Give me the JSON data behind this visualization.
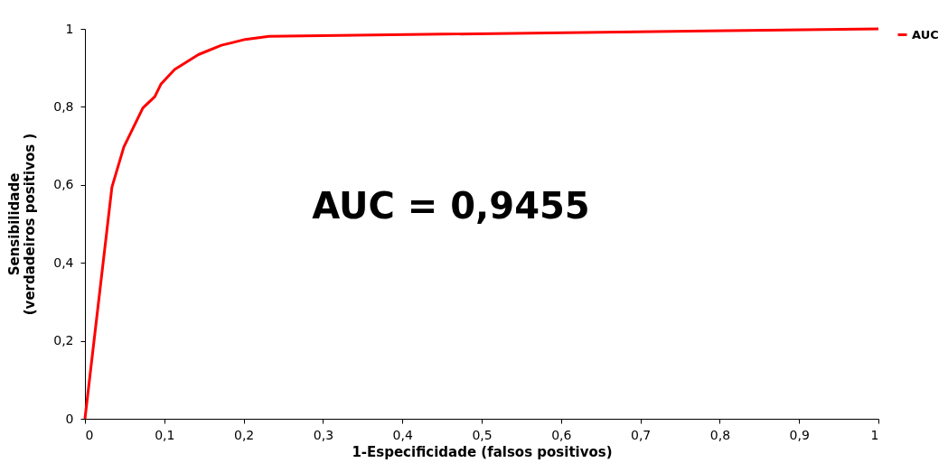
{
  "chart_data": {
    "type": "line",
    "xlabel": "1-Especificidade (falsos positivos)",
    "ylabel": [
      "Sensibilidade",
      "(verdadeiros positivos )"
    ],
    "annotations": [
      "AUC = 0,9455"
    ],
    "series": [
      {
        "name": "AUC",
        "color": "#ff0000",
        "x": [
          0,
          0.034,
          0.049,
          0.073,
          0.088,
          0.096,
          0.113,
          0.143,
          0.172,
          0.202,
          0.232,
          1
        ],
        "values": [
          0,
          0.594,
          0.697,
          0.797,
          0.826,
          0.859,
          0.896,
          0.934,
          0.958,
          0.973,
          0.981,
          1
        ]
      }
    ],
    "xlim": [
      0,
      1
    ],
    "ylim": [
      0,
      1
    ],
    "xticks": [
      0,
      {
        "value": 0.1,
        "label": "0,1"
      },
      {
        "value": 0.2,
        "label": "0,2"
      },
      {
        "value": 0.3,
        "label": "0,3"
      },
      {
        "value": 0.4,
        "label": "0,4"
      },
      {
        "value": 0.5,
        "label": "0,5"
      },
      {
        "value": 0.6,
        "label": "0,6"
      },
      {
        "value": 0.7,
        "label": "0,7"
      },
      {
        "value": 0.8,
        "label": "0,8"
      },
      {
        "value": 0.9,
        "label": "0,9"
      },
      1
    ],
    "yticks": [
      0,
      {
        "value": 0.2,
        "label": "0,2"
      },
      {
        "value": 0.4,
        "label": "0,4"
      },
      {
        "value": 0.6,
        "label": "0,6"
      },
      {
        "value": 0.8,
        "label": "0,8"
      },
      1
    ],
    "grid": false,
    "legend": "right",
    "marker": "none",
    "line_style": "solid"
  }
}
